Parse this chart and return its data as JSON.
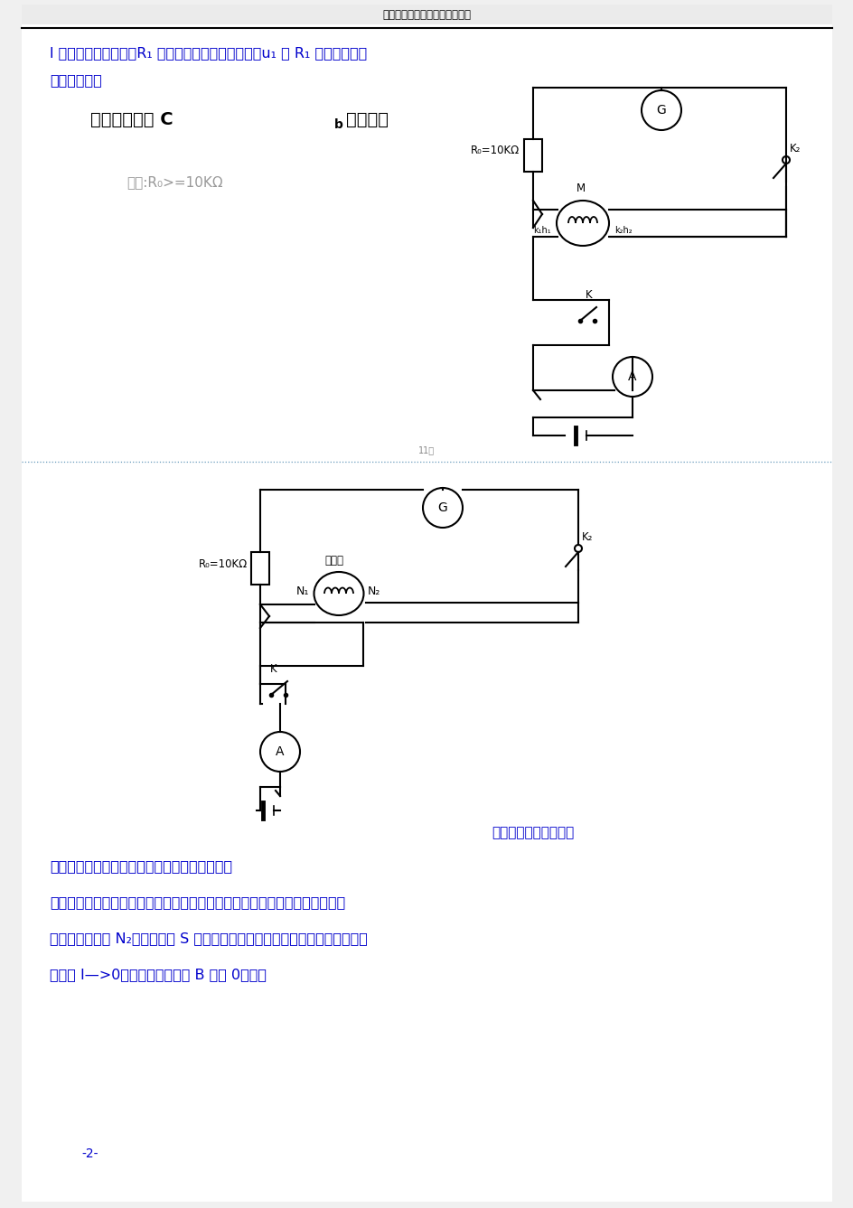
{
  "bg_color": "#f0f0f0",
  "page_bg": "#ffffff",
  "header_text": "百度文库．好好学习，天天向上",
  "header_color": "#000000",
  "line1_text": "l 是样品的平均长度，R₁ 是与初级线圈串联的电阻，u₁ 是 R₁ 两端的电压。",
  "line1_color": "#0000cc",
  "line2_text": "电路图如下：",
  "line2_color": "#0000cc",
  "circuit1_title": "测量冲击常数  C",
  "circuit1_title_sub": "b",
  "circuit1_title2": "参考电路",
  "circuit1_title_color": "#000000",
  "note_text": "注意:R₀>=10KΩ",
  "note_color": "#999999",
  "circuit2_caption": "测量螺绕环的参考电路",
  "circuit2_caption_color": "#0000cc",
  "para1": "进行软磁的静态测量，电流由直流电源来提供。",
  "para1_color": "#0000cc",
  "para2": "样品被磁化后，进而在测量线圈中产生感应电动势。设在测量线圈中产生的磁",
  "para2_color": "#0000cc",
  "para3": "场垂直于匝数为 N₂，截面积为 S 的测量线圈的截面。当励磁电流有一突然变化",
  "para3_color": "#0000cc",
  "para4": "时（由 I—>0），磁感应强度由 B 变为 0，则，",
  "para4_color": "#0000cc",
  "page_number": "-2-",
  "page_number_color": "#0000cc",
  "separator_color": "#6699bb",
  "wire_color": "#000000",
  "lw": 1.5
}
